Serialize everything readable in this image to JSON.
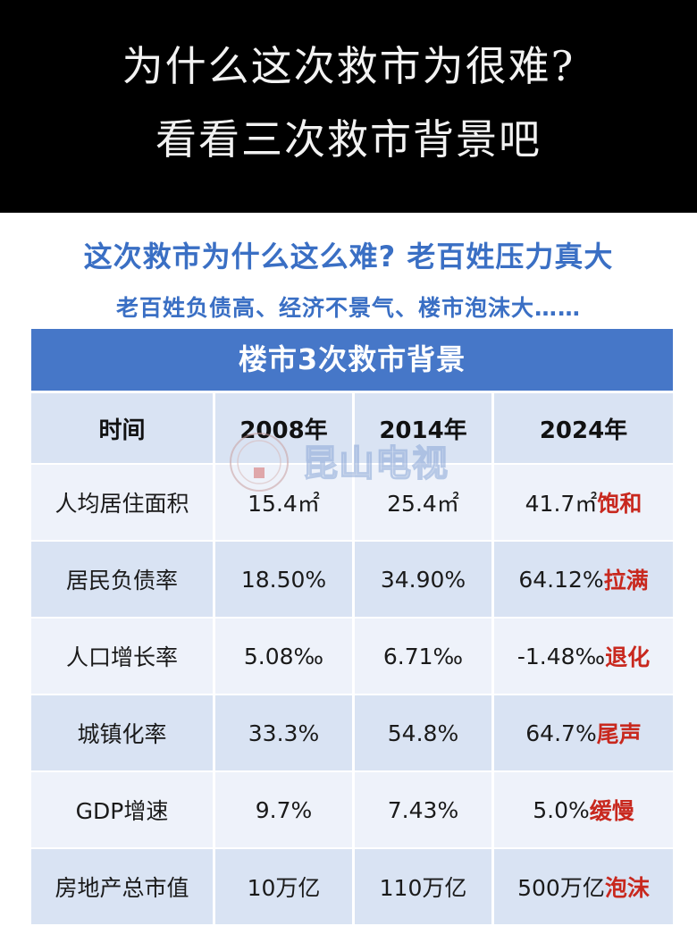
{
  "banner": {
    "line1": "为什么这次救市为很难?",
    "line2": "看看三次救市背景吧"
  },
  "headline": "这次救市为什么这么难? 老百姓压力真大",
  "subline": "老百姓负债高、经济不景气、楼市泡沫大……",
  "table": {
    "title": "楼市3次救市背景",
    "headers": [
      "时间",
      "2008年",
      "2014年",
      "2024年"
    ],
    "rows": [
      {
        "label": "人均居住面积",
        "v2008": "15.4㎡",
        "v2014": "25.4㎡",
        "v2024": "41.7㎡",
        "tag": "饱和"
      },
      {
        "label": "居民负债率",
        "v2008": "18.50%",
        "v2014": "34.90%",
        "v2024": "64.12%",
        "tag": "拉满"
      },
      {
        "label": "人口增长率",
        "v2008": "5.08‰",
        "v2014": "6.71‰",
        "v2024": "-1.48‰",
        "tag": "退化"
      },
      {
        "label": "城镇化率",
        "v2008": "33.3%",
        "v2014": "54.8%",
        "v2024": "64.7%",
        "tag": "尾声"
      },
      {
        "label": "GDP增速",
        "v2008": "9.7%",
        "v2014": "7.43%",
        "v2024": "5.0%",
        "tag": "缓慢"
      },
      {
        "label": "房地产总市值",
        "v2008": "10万亿",
        "v2014": "110万亿",
        "v2024": "500万亿",
        "tag": "泡沫"
      }
    ]
  },
  "watermark": {
    "text": "昆山电视"
  },
  "colors": {
    "accent_blue": "#3a6fc4",
    "title_bar": "#4677c8",
    "row_shade": "#d9e3f3",
    "row_plain": "#eef2fa",
    "tag_red": "#c8281e"
  }
}
